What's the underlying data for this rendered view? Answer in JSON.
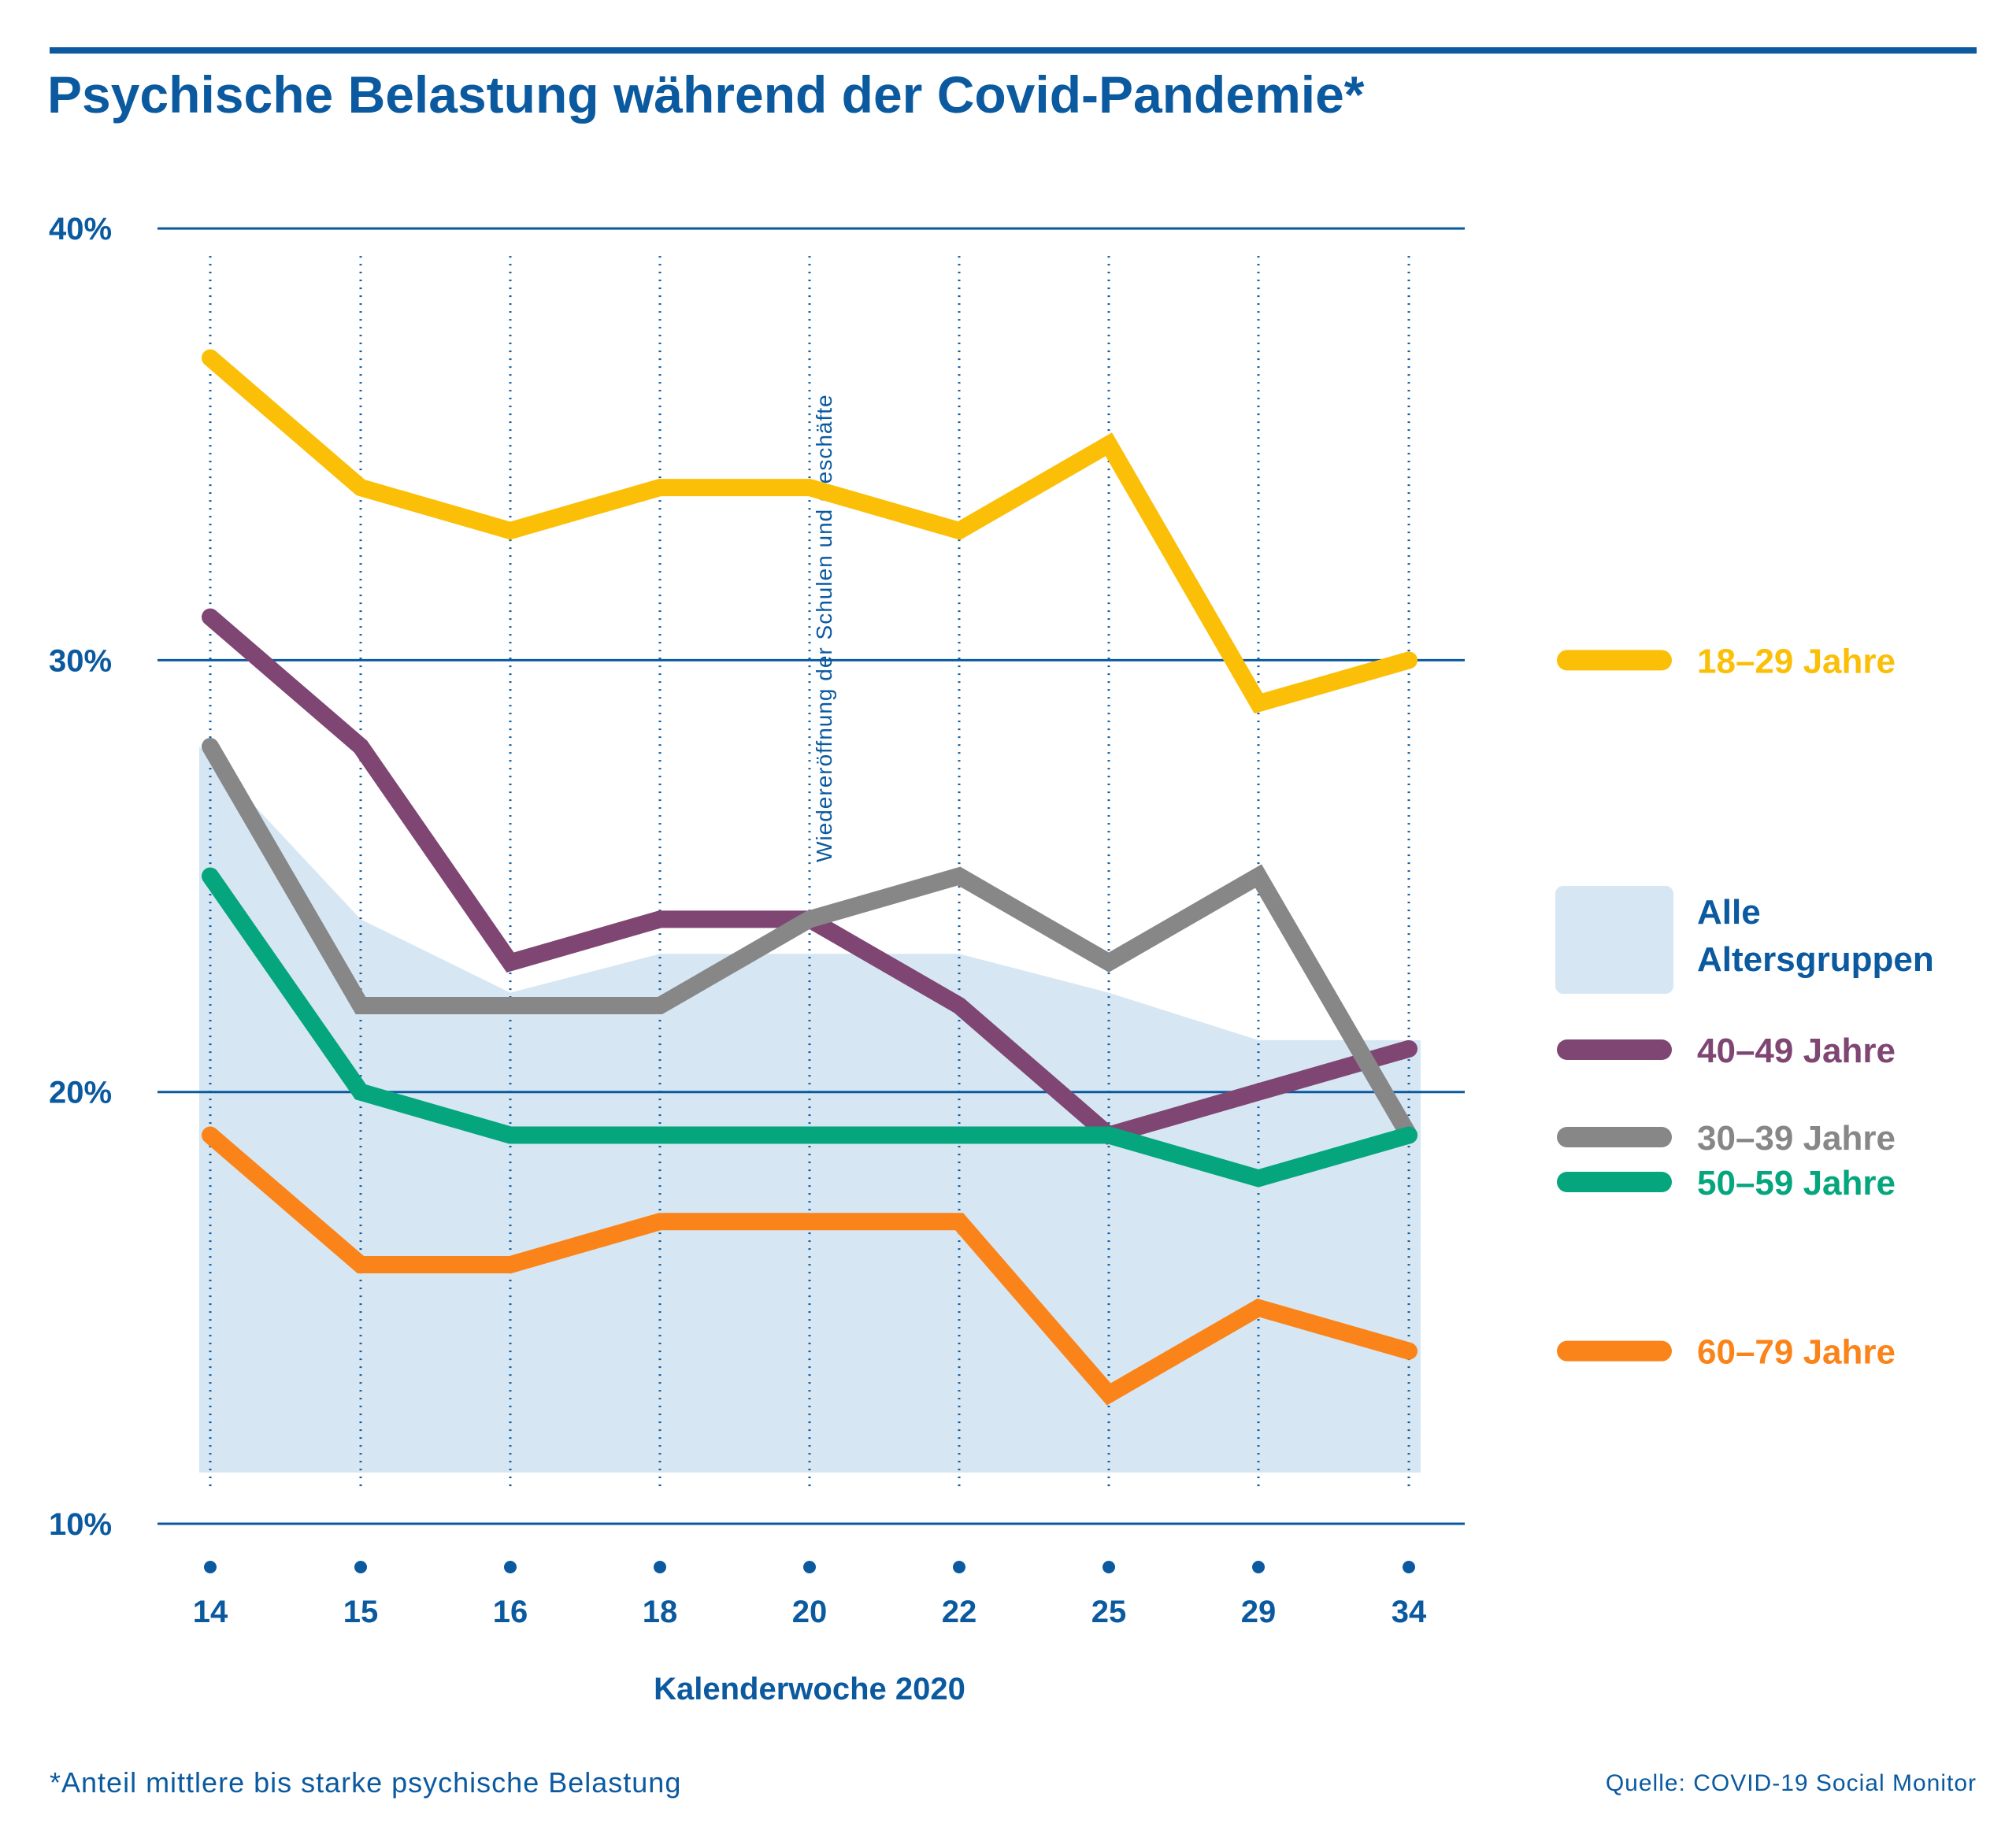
{
  "title": "Psychische Belastung während der Covid-Pandemie*",
  "footnote": "*Anteil mittlere bis starke psychische Belastung",
  "source": "Quelle: COVID-19 Social Monitor",
  "colors": {
    "brand_blue": "#0b5aa0",
    "area": "#d6e7f3",
    "s18_29": "#fbbf07",
    "s30_39": "#878787",
    "s40_49": "#7f4673",
    "s50_59": "#05a67d",
    "s60_79": "#fb841a"
  },
  "chart_data": {
    "type": "line",
    "xlabel": "Kalenderwoche 2020",
    "ylabel": "",
    "x": [
      "14",
      "15",
      "16",
      "18",
      "20",
      "22",
      "25",
      "29",
      "34"
    ],
    "ylim": [
      10,
      40
    ],
    "yticks": [
      "10%",
      "20%",
      "30%",
      "40%"
    ],
    "ytick_values": [
      10,
      20,
      30,
      40
    ],
    "grid": "horizontal",
    "legend": "right",
    "annotation": {
      "text": "Wiedereröffnung der Schulen und Geschäfte",
      "at_x": "20"
    },
    "area": {
      "name": "Alle Altersgruppen",
      "name_lines": [
        "Alle",
        "Altersgruppen"
      ],
      "values": [
        28,
        24,
        22.3,
        23.2,
        23.2,
        23.2,
        22.3,
        21.2,
        21.2
      ]
    },
    "series": [
      {
        "key": "s18_29",
        "name": "18–29 Jahre",
        "values": [
          37,
          34,
          33,
          34,
          34,
          33,
          35,
          29,
          30
        ]
      },
      {
        "key": "s40_49",
        "name": "40–49 Jahre",
        "values": [
          31,
          28,
          23,
          24,
          24,
          22,
          19,
          20,
          21
        ]
      },
      {
        "key": "s30_39",
        "name": "30–39 Jahre",
        "values": [
          28,
          22,
          22,
          22,
          24,
          25,
          23,
          25,
          19
        ]
      },
      {
        "key": "s50_59",
        "name": "50–59 Jahre",
        "values": [
          25,
          20,
          19,
          19,
          19,
          19,
          19,
          18,
          19
        ]
      },
      {
        "key": "s60_79",
        "name": "60–79 Jahre",
        "values": [
          19,
          16,
          16,
          17,
          17,
          17,
          13,
          15,
          14
        ]
      }
    ]
  }
}
